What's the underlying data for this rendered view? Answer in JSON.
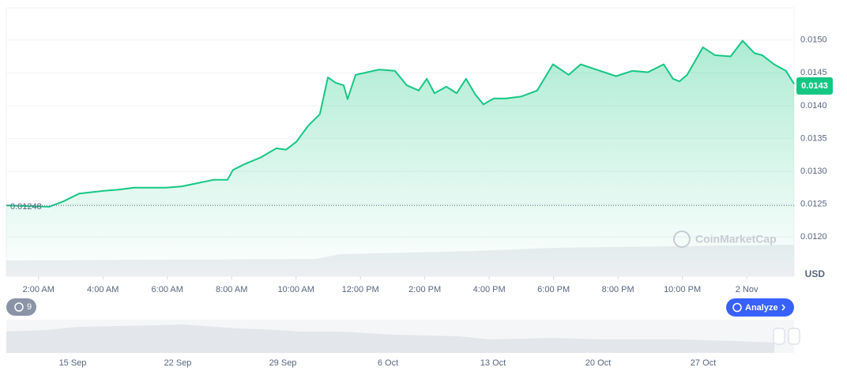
{
  "chart_data": {
    "type": "line",
    "x": [
      1.0,
      2.33,
      2.77,
      3.26,
      3.99,
      4.48,
      4.97,
      5.47,
      5.96,
      6.45,
      6.94,
      7.43,
      7.87,
      8.04,
      8.41,
      8.9,
      9.39,
      9.69,
      10.01,
      10.37,
      10.74,
      10.99,
      11.23,
      11.48,
      11.6,
      11.85,
      12.21,
      12.58,
      13.07,
      13.44,
      13.81,
      14.06,
      14.3,
      14.67,
      14.99,
      15.28,
      15.57,
      15.82,
      16.14,
      16.51,
      17.0,
      17.49,
      17.98,
      18.47,
      18.84,
      19.45,
      19.94,
      20.44,
      20.93,
      21.42,
      21.71,
      21.91,
      22.15,
      22.64,
      23.01,
      23.5,
      23.87,
      24.24,
      24.48,
      24.85,
      25.22,
      25.47
    ],
    "series": [
      {
        "color": "#16c784",
        "values": [
          0.01248,
          0.01246,
          0.01254,
          0.01266,
          0.0127,
          0.01272,
          0.01275,
          0.01275,
          0.01275,
          0.01277,
          0.01282,
          0.01287,
          0.01287,
          0.01302,
          0.01311,
          0.01321,
          0.01335,
          0.01333,
          0.01345,
          0.01369,
          0.01387,
          0.01443,
          0.01435,
          0.01431,
          0.0141,
          0.01447,
          0.01451,
          0.01455,
          0.01453,
          0.01431,
          0.01423,
          0.01441,
          0.01419,
          0.01429,
          0.01419,
          0.01441,
          0.01417,
          0.01402,
          0.01411,
          0.01411,
          0.01414,
          0.01423,
          0.01463,
          0.01447,
          0.01463,
          0.01453,
          0.01445,
          0.01453,
          0.01451,
          0.01463,
          0.01441,
          0.01437,
          0.01447,
          0.01489,
          0.01477,
          0.01475,
          0.01499,
          0.0148,
          0.01477,
          0.01463,
          0.01453,
          0.01433
        ]
      }
    ],
    "xlim": [
      1.0,
      25.47
    ],
    "xticks": [
      {
        "value": 2,
        "label": "2:00 AM"
      },
      {
        "value": 4,
        "label": "4:00 AM"
      },
      {
        "value": 6,
        "label": "6:00 AM"
      },
      {
        "value": 8,
        "label": "8:00 AM"
      },
      {
        "value": 10,
        "label": "10:00 AM"
      },
      {
        "value": 12,
        "label": "12:00 PM"
      },
      {
        "value": 14,
        "label": "2:00 PM"
      },
      {
        "value": 16,
        "label": "4:00 PM"
      },
      {
        "value": 18,
        "label": "6:00 PM"
      },
      {
        "value": 20,
        "label": "8:00 PM"
      },
      {
        "value": 22,
        "label": "10:00 PM"
      },
      {
        "value": 24,
        "label": "2 Nov"
      }
    ],
    "ylim": [
      0.0114,
      0.01549
    ],
    "yticks": [
      {
        "value": 0.015,
        "label": "0.0150"
      },
      0.0145,
      {
        "value": 0.014,
        "label": "0.0140"
      },
      0.0135,
      {
        "value": 0.013,
        "label": "0.0130"
      },
      0.0125,
      {
        "value": 0.012,
        "label": "0.0120"
      }
    ],
    "y_axis_label": "USD",
    "grid": true,
    "baseline": 0.01248,
    "current_price": 0.0143,
    "watermark": "CoinMarketCap",
    "navigator_labels": [
      "15 Sep",
      "22 Sep",
      "29 Sep",
      "6 Oct",
      "13 Oct",
      "20 Oct",
      "27 Oct"
    ]
  },
  "controls": {
    "history_count": "9",
    "analyze": "Analyze"
  }
}
